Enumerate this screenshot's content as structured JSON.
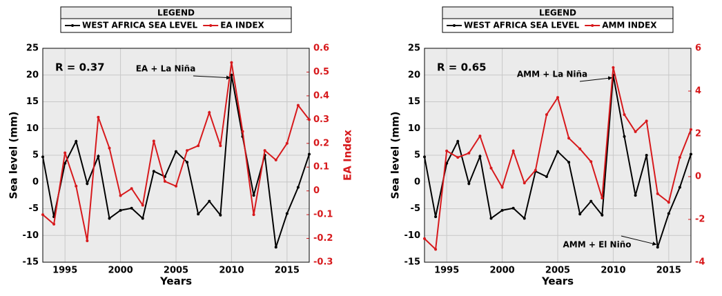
{
  "chart_data": [
    {
      "type": "line",
      "legend_title": "LEGEND",
      "x_label": "Years",
      "y_label": "Sea level (mm)",
      "y2_label": "EA Index",
      "x": [
        1993,
        1994,
        1995,
        1996,
        1997,
        1998,
        1999,
        2000,
        2001,
        2002,
        2003,
        2004,
        2005,
        2006,
        2007,
        2008,
        2009,
        2010,
        2011,
        2012,
        2013,
        2014,
        2015,
        2016,
        2017
      ],
      "xlim": [
        1993,
        2017
      ],
      "xticks": [
        1995,
        2000,
        2005,
        2010,
        2015
      ],
      "ylim": [
        -15,
        25
      ],
      "yticks": [
        -15,
        -10,
        -5,
        0,
        5,
        10,
        15,
        20,
        25
      ],
      "y2lim": [
        -0.3,
        0.6
      ],
      "y2ticks": [
        -0.3,
        -0.2,
        -0.1,
        0,
        0.1,
        0.2,
        0.3,
        0.4,
        0.5,
        0.6
      ],
      "grid": true,
      "series": [
        {
          "name": "WEST AFRICA SEA LEVEL",
          "color": "#000000",
          "values": [
            4.7,
            -6.5,
            3.5,
            7.6,
            -0.3,
            4.8,
            -6.8,
            -5.3,
            -4.9,
            -6.8,
            2.0,
            1.0,
            5.7,
            3.7,
            -6.0,
            -3.6,
            -6.2,
            20.0,
            8.5,
            -2.5,
            5.0,
            -12.2,
            -5.9,
            -1.0,
            5.2
          ]
        },
        {
          "name": "EA INDEX",
          "color": "#d7191c",
          "axis": "y2",
          "values": [
            -0.1,
            -0.14,
            0.16,
            0.02,
            -0.21,
            0.31,
            0.18,
            -0.02,
            0.01,
            -0.06,
            0.21,
            0.04,
            0.02,
            0.17,
            0.19,
            0.33,
            0.19,
            0.54,
            0.25,
            -0.1,
            0.17,
            0.13,
            0.2,
            0.36,
            0.3
          ]
        }
      ],
      "annotations": [
        "R = 0.37",
        "EA + La Niña"
      ]
    },
    {
      "type": "line",
      "legend_title": "LEGEND",
      "x_label": "Years",
      "y_label": "Sea level (mm)",
      "y2_label": "AMM Index",
      "x": [
        1993,
        1994,
        1995,
        1996,
        1997,
        1998,
        1999,
        2000,
        2001,
        2002,
        2003,
        2004,
        2005,
        2006,
        2007,
        2008,
        2009,
        2010,
        2011,
        2012,
        2013,
        2014,
        2015,
        2016,
        2017
      ],
      "xlim": [
        1993,
        2017
      ],
      "xticks": [
        1995,
        2000,
        2005,
        2010,
        2015
      ],
      "ylim": [
        -15,
        25
      ],
      "yticks": [
        -15,
        -10,
        -5,
        0,
        5,
        10,
        15,
        20,
        25
      ],
      "y2lim": [
        -4,
        6
      ],
      "y2ticks": [
        -4,
        -2,
        0,
        2,
        4,
        6
      ],
      "grid": true,
      "series": [
        {
          "name": "WEST AFRICA SEA LEVEL",
          "color": "#000000",
          "values": [
            4.7,
            -6.5,
            3.5,
            7.6,
            -0.3,
            4.8,
            -6.8,
            -5.3,
            -4.9,
            -6.8,
            2.0,
            1.0,
            5.7,
            3.7,
            -6.0,
            -3.6,
            -6.2,
            20.0,
            8.5,
            -2.5,
            5.0,
            -12.2,
            -5.9,
            -1.0,
            5.2
          ]
        },
        {
          "name": "AMM INDEX",
          "color": "#d7191c",
          "axis": "y2",
          "values": [
            -2.9,
            -3.4,
            1.2,
            0.9,
            1.1,
            1.9,
            0.4,
            -0.5,
            1.2,
            -0.3,
            0.3,
            2.9,
            3.7,
            1.8,
            1.3,
            0.7,
            -1.0,
            5.1,
            2.9,
            2.1,
            2.6,
            -0.8,
            -1.2,
            0.9,
            2.2
          ]
        }
      ],
      "annotations": [
        "R = 0.65",
        "AMM + La Niña",
        "AMM + El Niño"
      ]
    }
  ]
}
